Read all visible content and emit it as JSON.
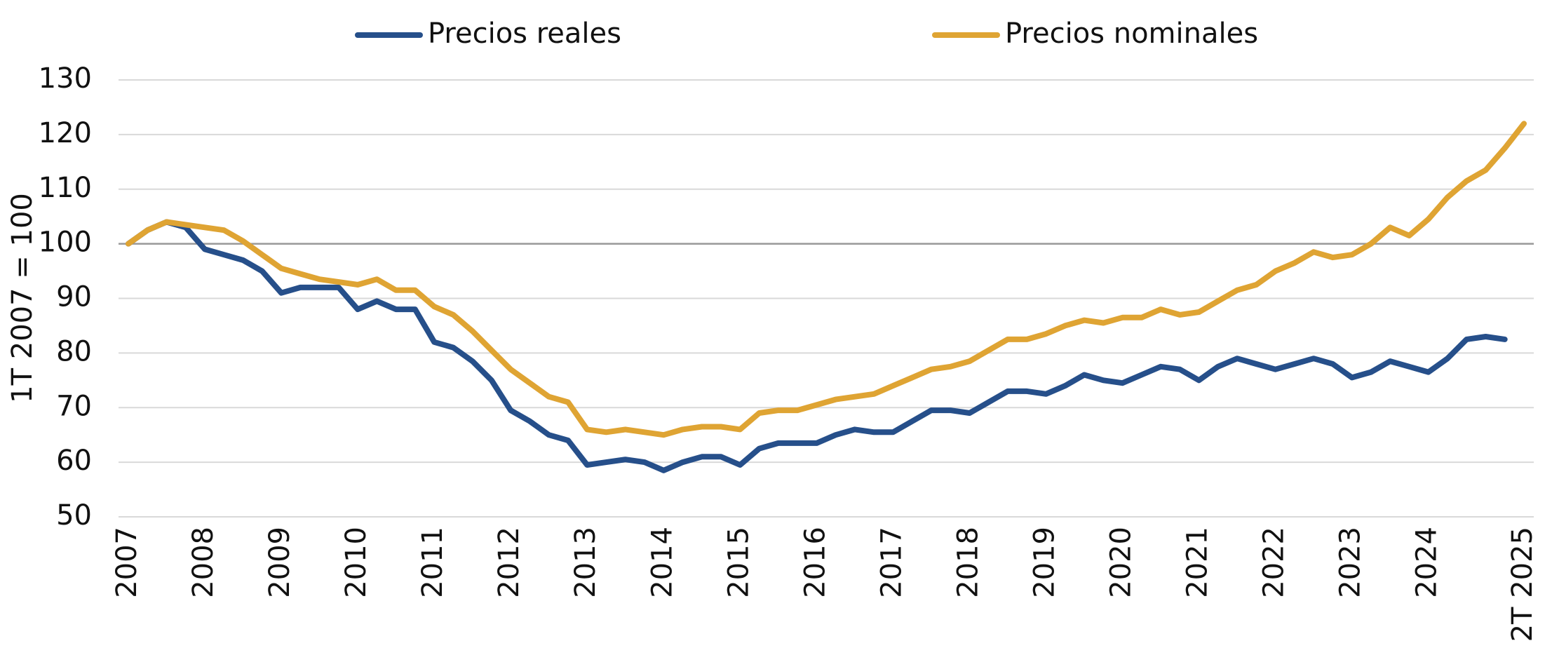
{
  "chart_data": {
    "type": "line",
    "y_label": "1T 2007 = 100",
    "categories": [
      "2007",
      null,
      null,
      null,
      "2008",
      null,
      null,
      null,
      "2009",
      null,
      null,
      null,
      "2010",
      null,
      null,
      null,
      "2011",
      null,
      null,
      null,
      "2012",
      null,
      null,
      null,
      "2013",
      null,
      null,
      null,
      "2014",
      null,
      null,
      null,
      "2015",
      null,
      null,
      null,
      "2016",
      null,
      null,
      null,
      "2017",
      null,
      null,
      null,
      "2018",
      null,
      null,
      null,
      "2019",
      null,
      null,
      null,
      "2020",
      null,
      null,
      null,
      "2021",
      null,
      null,
      null,
      "2022",
      null,
      null,
      null,
      "2023",
      null,
      null,
      null,
      "2024",
      null,
      null,
      null,
      null,
      "2T 2025"
    ],
    "series": [
      {
        "name": "Precios reales",
        "color": "#264f8a",
        "values": [
          100,
          102.5,
          104,
          103,
          99,
          98,
          97,
          95,
          91,
          92,
          92,
          92,
          88,
          89.5,
          88,
          88,
          82,
          81,
          78.5,
          75,
          69.5,
          67.5,
          65,
          64,
          59.5,
          60,
          60.5,
          60,
          58.5,
          60,
          61,
          61,
          59.5,
          62.5,
          63.5,
          63.5,
          63.5,
          65,
          66,
          65.5,
          65.5,
          67.5,
          69.5,
          69.5,
          69,
          71,
          73,
          73,
          72.5,
          74,
          76,
          75,
          74.5,
          76,
          77.5,
          77,
          75,
          77.5,
          79,
          78,
          77,
          78,
          79,
          78,
          75.5,
          76.5,
          78.5,
          77.5,
          76.5,
          79,
          82.5,
          83,
          82.5,
          null
        ]
      },
      {
        "name": "Precios nominales",
        "color": "#dfa433",
        "values": [
          100,
          102.5,
          104,
          103.5,
          103,
          102.5,
          100.5,
          98,
          95.5,
          94.5,
          93.5,
          93,
          92.5,
          93.5,
          91.5,
          91.5,
          88.5,
          87,
          84,
          80.5,
          77,
          74.5,
          72,
          71,
          66,
          65.5,
          66,
          65.5,
          65,
          66,
          66.5,
          66.5,
          66,
          69,
          69.5,
          69.5,
          70.5,
          71.5,
          72,
          72.5,
          74,
          75.5,
          77,
          77.5,
          78.5,
          80.5,
          82.5,
          82.5,
          83.5,
          85,
          86,
          85.5,
          86.5,
          86.5,
          88,
          87,
          87.5,
          89.5,
          91.5,
          92.5,
          95,
          96.5,
          98.5,
          97.5,
          98,
          100,
          103,
          101.5,
          104.5,
          108.5,
          111.5,
          113.5,
          117.5,
          122
        ]
      }
    ],
    "ylim": [
      50,
      130
    ],
    "yticks": [
      50,
      60,
      70,
      80,
      90,
      100,
      110,
      120,
      130
    ],
    "reference_line": 100,
    "grid": true,
    "legend": "top"
  }
}
